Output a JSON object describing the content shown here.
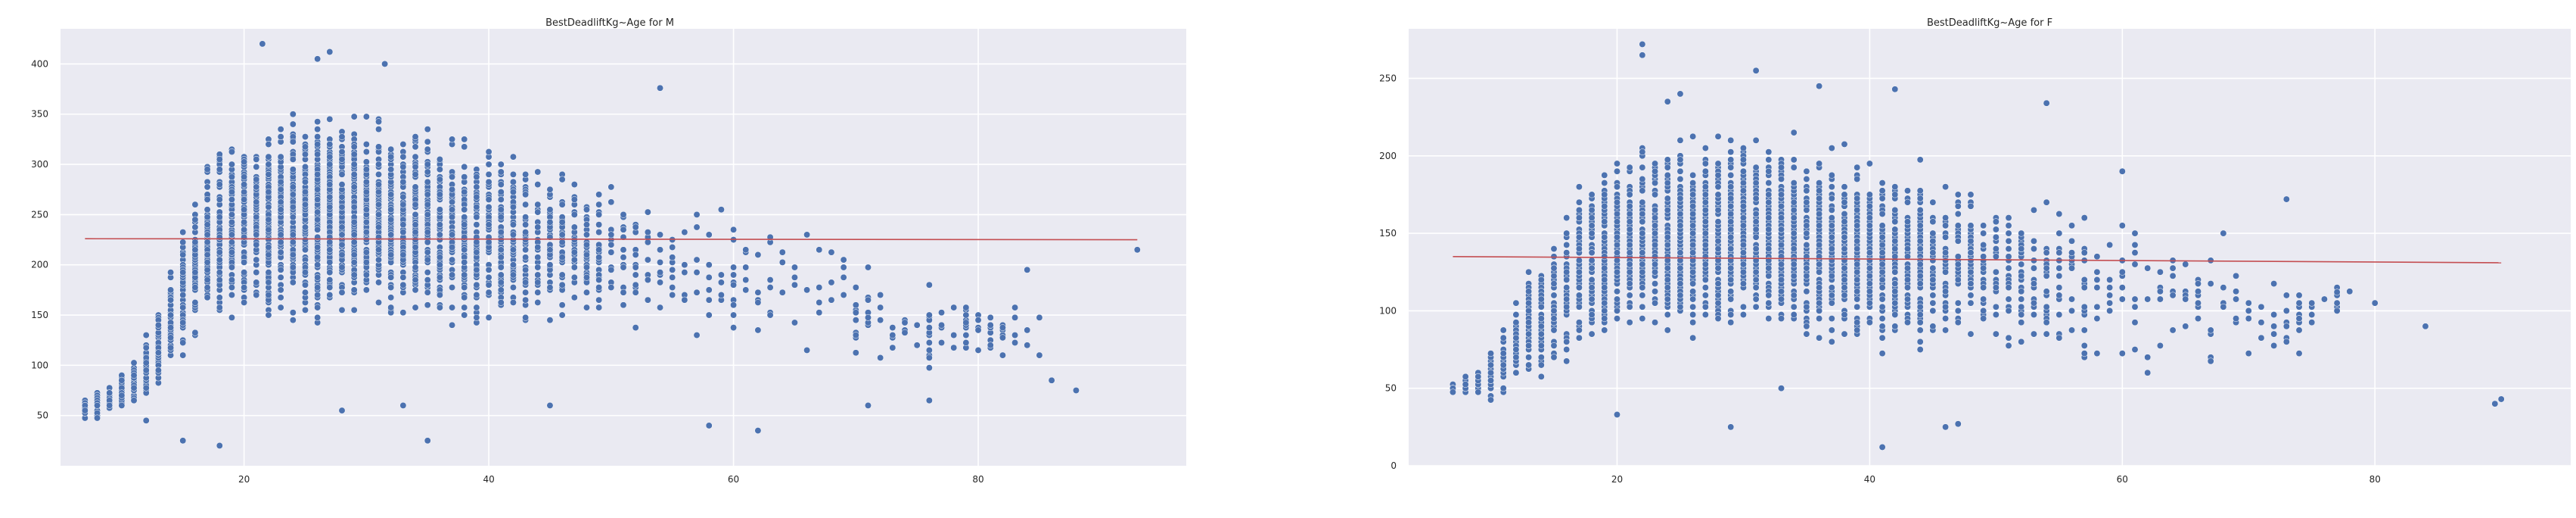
{
  "chart_data": [
    {
      "type": "scatter",
      "title": "BestDeadliftKg~Age for M",
      "xlabel": "",
      "ylabel": "",
      "xlim": [
        5,
        97
      ],
      "ylim": [
        0,
        435
      ],
      "xticks": [
        20,
        40,
        60,
        80
      ],
      "yticks": [
        50,
        100,
        150,
        200,
        250,
        300,
        350,
        400
      ],
      "grid": true,
      "point_color": "#4c72b0",
      "fit_color": "#c44e52",
      "trend_line": {
        "x": [
          7,
          93
        ],
        "y": [
          226,
          225
        ]
      },
      "density_profile": [
        [
          7,
          40,
          70
        ],
        [
          9,
          45,
          85
        ],
        [
          11,
          55,
          110
        ],
        [
          13,
          70,
          160
        ],
        [
          15,
          100,
          260
        ],
        [
          17,
          120,
          320
        ],
        [
          19,
          130,
          345
        ],
        [
          21,
          135,
          360
        ],
        [
          24,
          135,
          370
        ],
        [
          27,
          135,
          370
        ],
        [
          30,
          135,
          360
        ],
        [
          33,
          135,
          355
        ],
        [
          36,
          135,
          345
        ],
        [
          40,
          130,
          330
        ],
        [
          45,
          125,
          320
        ],
        [
          50,
          120,
          300
        ],
        [
          55,
          110,
          290
        ],
        [
          60,
          105,
          270
        ],
        [
          65,
          100,
          250
        ],
        [
          70,
          95,
          235
        ],
        [
          75,
          85,
          200
        ],
        [
          80,
          90,
          180
        ],
        [
          85,
          85,
          170
        ]
      ],
      "outliers": [
        [
          21.5,
          420
        ],
        [
          27,
          412
        ],
        [
          26,
          405
        ],
        [
          31.5,
          400
        ],
        [
          54,
          376
        ],
        [
          35,
          25
        ],
        [
          18,
          20
        ],
        [
          12,
          45
        ],
        [
          15,
          25
        ],
        [
          62,
          35
        ],
        [
          58,
          40
        ],
        [
          86,
          85
        ],
        [
          88,
          75
        ],
        [
          93,
          215
        ],
        [
          84,
          195
        ],
        [
          28,
          55
        ],
        [
          33,
          60
        ],
        [
          45,
          60
        ],
        [
          71,
          60
        ],
        [
          76,
          65
        ],
        [
          81,
          120
        ],
        [
          77,
          140
        ]
      ]
    },
    {
      "type": "scatter",
      "title": "BestDeadliftKg~Age for F",
      "xlabel": "",
      "ylabel": "",
      "xlim": [
        3.5,
        95.5
      ],
      "ylim": [
        0,
        282
      ],
      "xticks": [
        20,
        40,
        60,
        80
      ],
      "yticks": [
        0,
        50,
        100,
        150,
        200,
        250
      ],
      "grid": true,
      "point_color": "#4c72b0",
      "fit_color": "#c44e52",
      "trend_line": {
        "x": [
          7,
          90
        ],
        "y": [
          135,
          131
        ]
      },
      "density_profile": [
        [
          7,
          45,
          55
        ],
        [
          9,
          40,
          70
        ],
        [
          11,
          40,
          95
        ],
        [
          13,
          45,
          130
        ],
        [
          15,
          55,
          165
        ],
        [
          17,
          60,
          195
        ],
        [
          19,
          70,
          205
        ],
        [
          21,
          75,
          215
        ],
        [
          24,
          75,
          220
        ],
        [
          27,
          75,
          225
        ],
        [
          30,
          75,
          225
        ],
        [
          33,
          75,
          220
        ],
        [
          36,
          70,
          215
        ],
        [
          40,
          65,
          210
        ],
        [
          45,
          65,
          200
        ],
        [
          50,
          65,
          190
        ],
        [
          55,
          60,
          180
        ],
        [
          60,
          55,
          170
        ],
        [
          65,
          55,
          160
        ],
        [
          70,
          50,
          145
        ],
        [
          73,
          55,
          130
        ],
        [
          78,
          100,
          120
        ]
      ],
      "outliers": [
        [
          22,
          272
        ],
        [
          22,
          265
        ],
        [
          31,
          255
        ],
        [
          41,
          12
        ],
        [
          46,
          25
        ],
        [
          47,
          27
        ],
        [
          29,
          25
        ],
        [
          20,
          33
        ],
        [
          89.5,
          40
        ],
        [
          90,
          43
        ],
        [
          84,
          90
        ],
        [
          80,
          105
        ],
        [
          73,
          172
        ],
        [
          68,
          150
        ],
        [
          42,
          243
        ],
        [
          25,
          240
        ],
        [
          24,
          235
        ],
        [
          36,
          245
        ],
        [
          54,
          234
        ],
        [
          60,
          190
        ],
        [
          33,
          50
        ],
        [
          77,
          112
        ]
      ]
    }
  ]
}
